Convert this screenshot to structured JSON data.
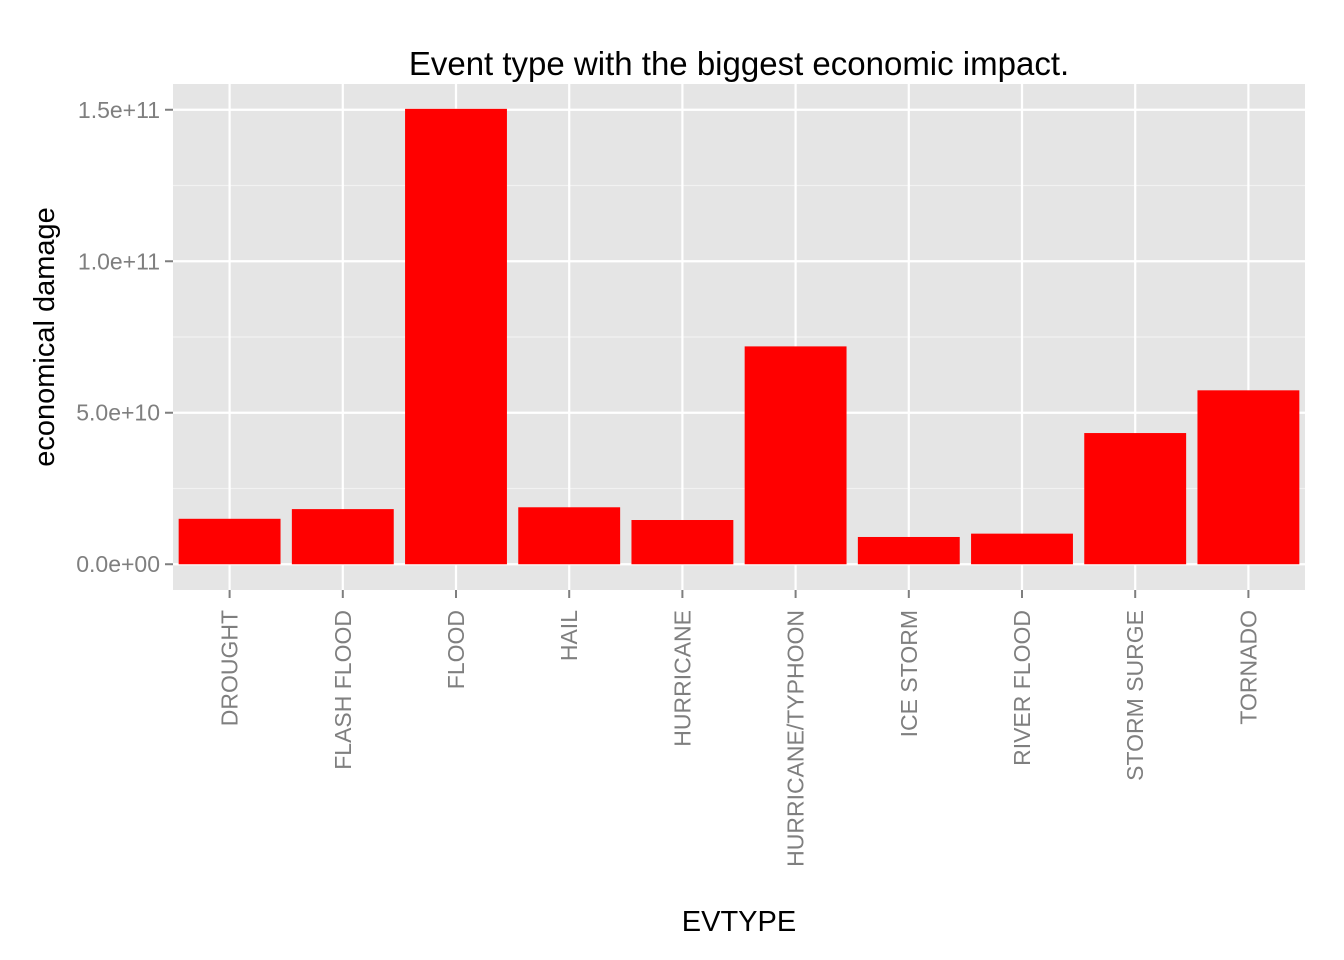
{
  "chart_data": {
    "type": "bar",
    "title": "Event type with the biggest economic impact.",
    "xlabel": "EVTYPE",
    "ylabel": "economical damage",
    "categories": [
      "DROUGHT",
      "FLASH FLOOD",
      "FLOOD",
      "HAIL",
      "HURRICANE",
      "HURRICANE/TYPHOON",
      "ICE STORM",
      "RIVER FLOOD",
      "STORM SURGE",
      "TORNADO"
    ],
    "values": [
      15000000000,
      18200000000,
      150300000000,
      18800000000,
      14600000000,
      71900000000,
      9000000000,
      10100000000,
      43300000000,
      57400000000
    ],
    "ylim": [
      -8500000000,
      158500000000
    ],
    "yticks": [
      0,
      50000000000,
      100000000000,
      150000000000
    ],
    "ytick_labels": [
      "0.0e+00",
      "5.0e+10",
      "1.0e+11",
      "1.5e+11"
    ],
    "grid": true,
    "legend": "none",
    "colors": {
      "bar": "#FF0000",
      "panel": "#E5E5E5",
      "grid_major": "#FFFFFF",
      "grid_minor": "#F2F2F2",
      "tick_text": "#7F7F7F",
      "label_text": "#000000"
    }
  }
}
